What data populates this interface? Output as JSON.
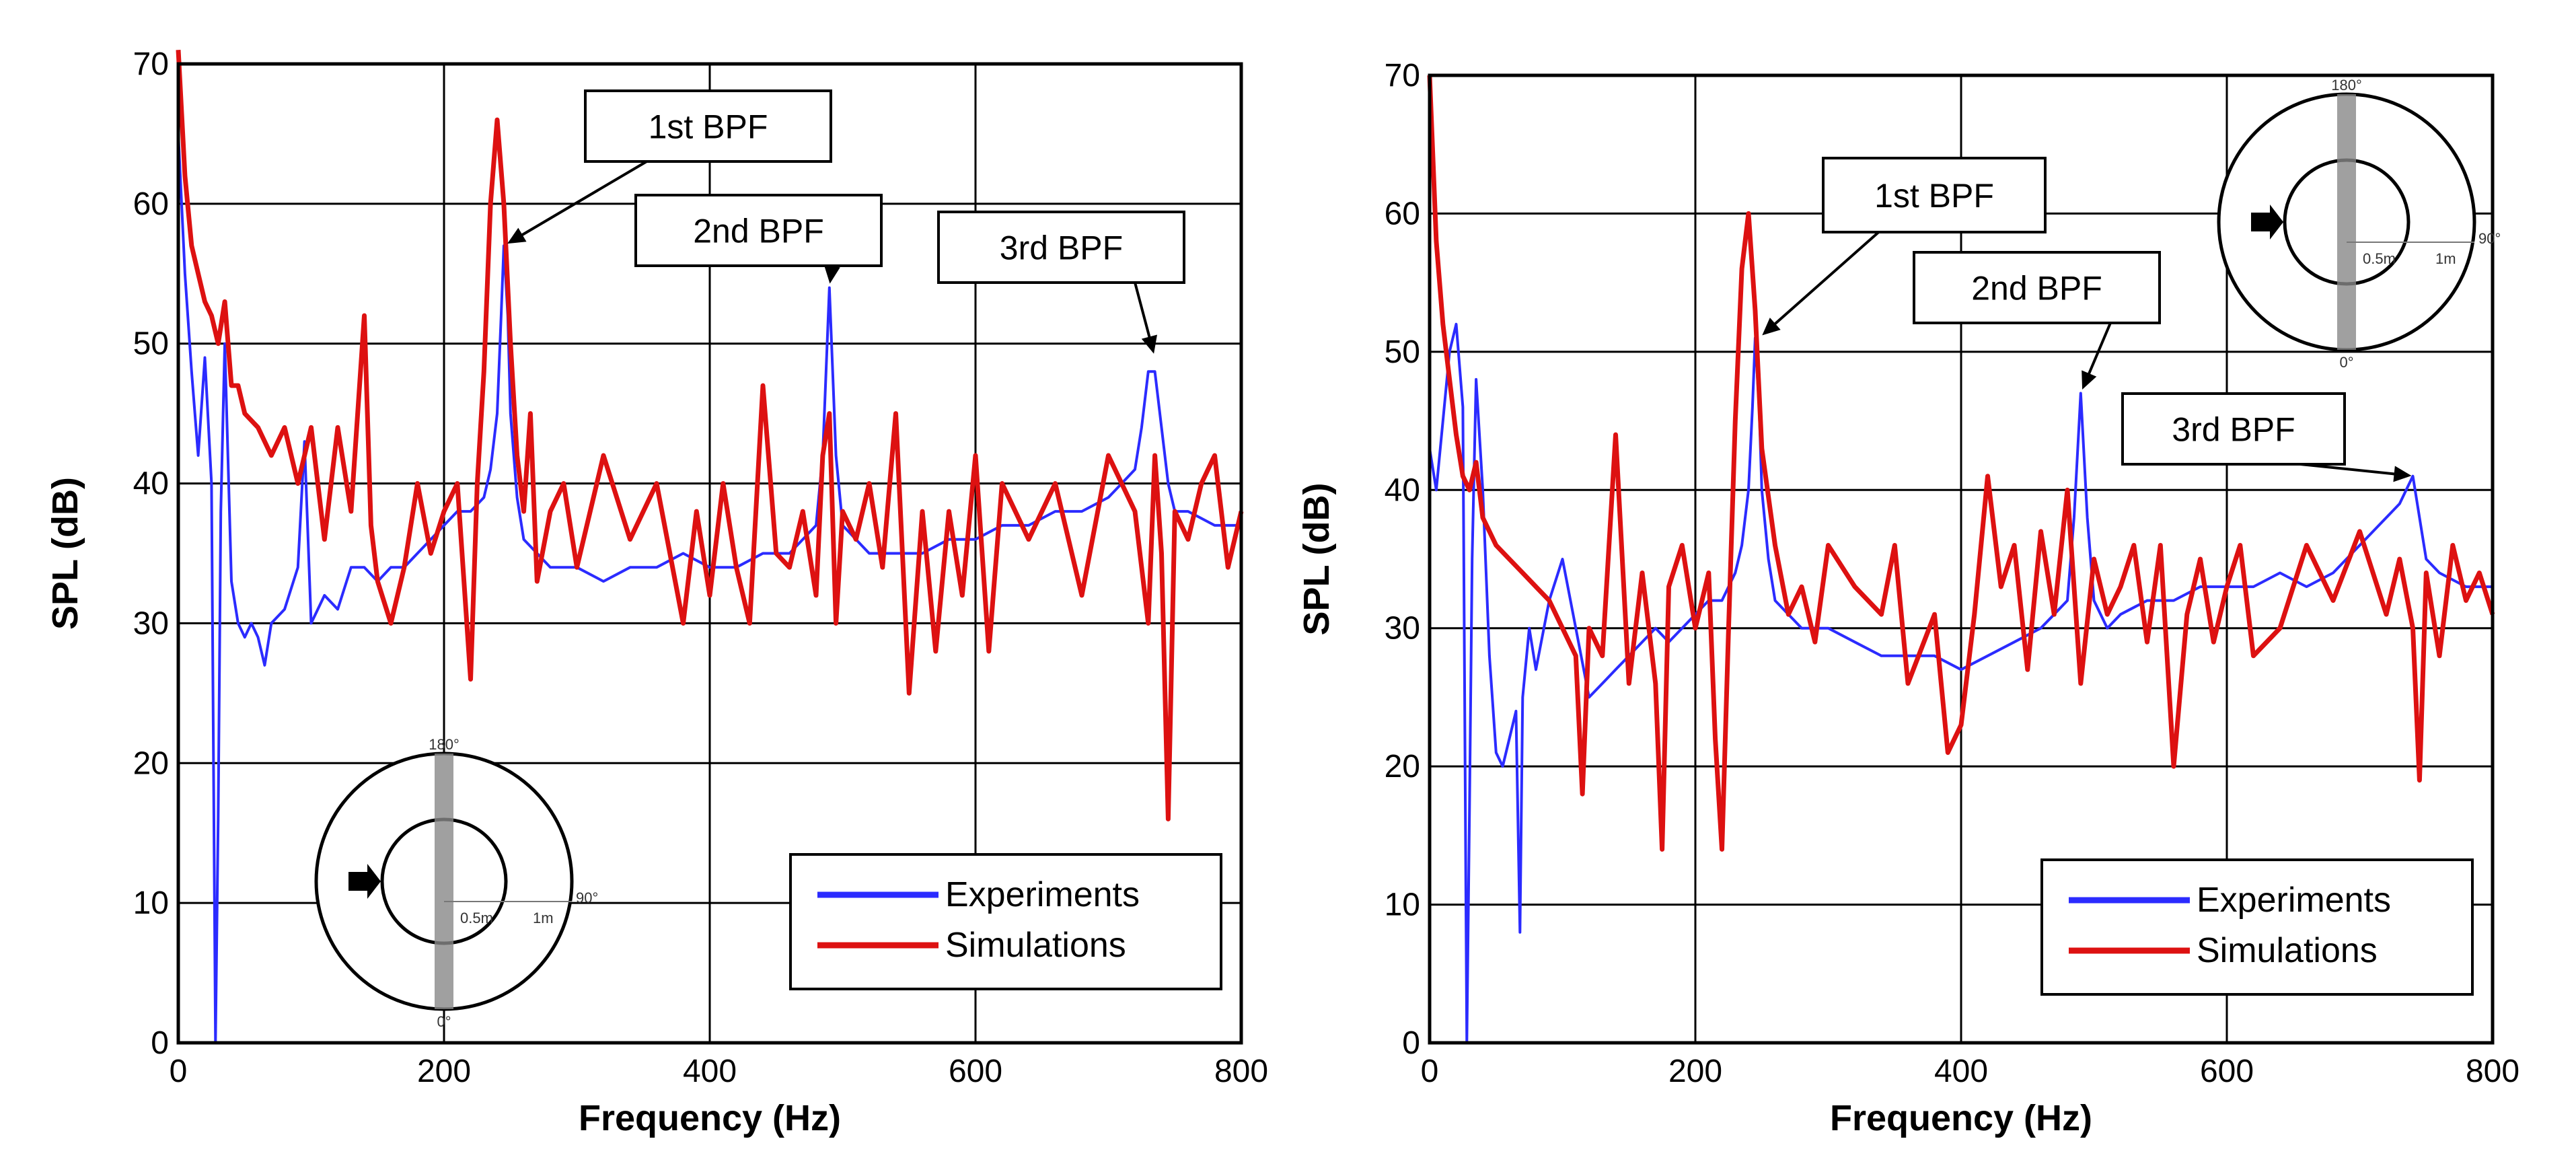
{
  "colors": {
    "experiments": "#2b2bff",
    "simulations": "#dd1111",
    "grid": "#000000"
  },
  "chart_data": [
    {
      "type": "line",
      "title": "",
      "xlabel": "Frequency (Hz)",
      "ylabel": "SPL (dB)",
      "xlim": [
        0,
        800
      ],
      "ylim": [
        0,
        70
      ],
      "xticks": [
        "0",
        "200",
        "400",
        "600",
        "800"
      ],
      "yticks": [
        "0",
        "10",
        "20",
        "30",
        "40",
        "50",
        "60",
        "70"
      ],
      "grid": true,
      "legend_position": "bottom-right",
      "annotations": [
        {
          "label": "1st BPF",
          "target": [
            245,
            57
          ]
        },
        {
          "label": "2nd BPF",
          "target": [
            490,
            54
          ]
        },
        {
          "label": "3rd BPF",
          "target": [
            735,
            49
          ]
        }
      ],
      "inset": {
        "labels": [
          "180°",
          "90°",
          "0°",
          "0.5m",
          "1m"
        ]
      },
      "series": [
        {
          "name": "Experiments",
          "color_key": "experiments",
          "x": [
            0,
            5,
            10,
            15,
            20,
            25,
            28,
            30,
            32,
            35,
            40,
            45,
            50,
            55,
            60,
            65,
            70,
            80,
            90,
            95,
            100,
            110,
            120,
            130,
            140,
            150,
            160,
            170,
            180,
            190,
            200,
            210,
            220,
            230,
            235,
            240,
            243,
            245,
            248,
            250,
            255,
            260,
            270,
            280,
            300,
            320,
            340,
            360,
            380,
            400,
            420,
            440,
            460,
            470,
            480,
            485,
            490,
            495,
            500,
            510,
            520,
            540,
            560,
            580,
            600,
            620,
            640,
            660,
            680,
            700,
            710,
            720,
            725,
            730,
            735,
            740,
            745,
            750,
            760,
            780,
            800
          ],
          "values": [
            65,
            55,
            48,
            42,
            49,
            40,
            0,
            16,
            38,
            50,
            33,
            30,
            29,
            30,
            29,
            27,
            30,
            31,
            34,
            43,
            30,
            32,
            31,
            34,
            34,
            33,
            34,
            34,
            35,
            36,
            37,
            38,
            38,
            39,
            41,
            45,
            52,
            57,
            52,
            45,
            39,
            36,
            35,
            34,
            34,
            33,
            34,
            34,
            35,
            34,
            34,
            35,
            35,
            36,
            37,
            42,
            54,
            42,
            37,
            36,
            35,
            35,
            35,
            36,
            36,
            37,
            37,
            38,
            38,
            39,
            40,
            41,
            44,
            48,
            48,
            44,
            40,
            38,
            38,
            37,
            37
          ]
        },
        {
          "name": "Simulations",
          "color_key": "simulations",
          "x": [
            0,
            5,
            10,
            15,
            20,
            25,
            30,
            35,
            40,
            45,
            50,
            60,
            70,
            80,
            90,
            100,
            110,
            120,
            130,
            140,
            145,
            150,
            160,
            170,
            180,
            190,
            200,
            210,
            220,
            225,
            230,
            235,
            240,
            245,
            250,
            255,
            260,
            265,
            270,
            280,
            290,
            300,
            320,
            340,
            360,
            380,
            390,
            400,
            410,
            420,
            430,
            440,
            450,
            460,
            470,
            480,
            485,
            490,
            495,
            500,
            510,
            520,
            530,
            540,
            550,
            560,
            570,
            580,
            590,
            600,
            610,
            620,
            640,
            660,
            680,
            700,
            720,
            730,
            735,
            740,
            745,
            750,
            760,
            770,
            780,
            790,
            800
          ],
          "values": [
            71,
            62,
            57,
            55,
            53,
            52,
            50,
            53,
            47,
            47,
            45,
            44,
            42,
            44,
            40,
            44,
            36,
            44,
            38,
            52,
            37,
            33,
            30,
            34,
            40,
            35,
            38,
            40,
            26,
            40,
            48,
            60,
            66,
            60,
            50,
            42,
            38,
            45,
            33,
            38,
            40,
            34,
            42,
            36,
            40,
            30,
            38,
            32,
            40,
            34,
            30,
            47,
            35,
            34,
            38,
            32,
            42,
            45,
            30,
            38,
            36,
            40,
            34,
            45,
            25,
            38,
            28,
            38,
            32,
            42,
            28,
            40,
            36,
            40,
            32,
            42,
            38,
            30,
            42,
            35,
            16,
            38,
            36,
            40,
            42,
            34,
            38
          ]
        }
      ]
    },
    {
      "type": "line",
      "title": "",
      "xlabel": "Frequency (Hz)",
      "ylabel": "SPL (dB)",
      "xlim": [
        0,
        800
      ],
      "ylim": [
        0,
        70
      ],
      "xticks": [
        "0",
        "200",
        "400",
        "600",
        "800"
      ],
      "yticks": [
        "0",
        "10",
        "20",
        "30",
        "40",
        "50",
        "60",
        "70"
      ],
      "grid": true,
      "legend_position": "bottom-right",
      "annotations": [
        {
          "label": "1st BPF",
          "target": [
            248,
            51
          ]
        },
        {
          "label": "2nd BPF",
          "target": [
            490,
            47
          ]
        },
        {
          "label": "3rd BPF",
          "target": [
            742,
            41
          ]
        }
      ],
      "inset": {
        "labels": [
          "180°",
          "90°",
          "0°",
          "0.5m",
          "1m"
        ]
      },
      "series": [
        {
          "name": "Experiments",
          "color_key": "experiments",
          "x": [
            0,
            5,
            10,
            15,
            20,
            25,
            28,
            30,
            32,
            35,
            40,
            45,
            50,
            55,
            60,
            65,
            68,
            70,
            75,
            80,
            90,
            100,
            110,
            120,
            130,
            140,
            150,
            160,
            170,
            180,
            190,
            200,
            210,
            220,
            230,
            235,
            240,
            243,
            245,
            248,
            250,
            255,
            260,
            270,
            280,
            300,
            320,
            340,
            360,
            380,
            400,
            420,
            440,
            460,
            470,
            480,
            485,
            490,
            495,
            500,
            510,
            520,
            540,
            560,
            580,
            600,
            620,
            640,
            660,
            680,
            700,
            710,
            720,
            730,
            735,
            740,
            745,
            750,
            760,
            780,
            800
          ],
          "values": [
            43,
            40,
            45,
            50,
            52,
            46,
            0,
            17,
            35,
            48,
            40,
            28,
            21,
            20,
            22,
            24,
            8,
            25,
            30,
            27,
            32,
            35,
            30,
            25,
            26,
            27,
            28,
            29,
            30,
            29,
            30,
            31,
            32,
            32,
            34,
            36,
            40,
            46,
            51,
            46,
            40,
            35,
            32,
            31,
            30,
            30,
            29,
            28,
            28,
            28,
            27,
            28,
            29,
            30,
            31,
            32,
            38,
            47,
            38,
            32,
            30,
            31,
            32,
            32,
            33,
            33,
            33,
            34,
            33,
            34,
            36,
            37,
            38,
            39,
            40,
            41,
            38,
            35,
            34,
            33,
            33
          ]
        },
        {
          "name": "Simulations",
          "color_key": "simulations",
          "x": [
            0,
            5,
            10,
            15,
            20,
            25,
            30,
            35,
            40,
            45,
            50,
            60,
            70,
            80,
            90,
            100,
            110,
            115,
            120,
            130,
            140,
            150,
            160,
            170,
            175,
            180,
            190,
            200,
            210,
            215,
            220,
            225,
            230,
            235,
            240,
            245,
            250,
            260,
            270,
            280,
            290,
            300,
            320,
            340,
            350,
            360,
            380,
            390,
            400,
            410,
            420,
            430,
            440,
            450,
            460,
            470,
            480,
            490,
            500,
            510,
            520,
            530,
            540,
            550,
            560,
            570,
            580,
            590,
            600,
            610,
            620,
            640,
            660,
            680,
            700,
            720,
            730,
            740,
            745,
            750,
            760,
            770,
            780,
            790,
            800
          ],
          "values": [
            70,
            58,
            52,
            48,
            44,
            41,
            40,
            42,
            38,
            37,
            36,
            35,
            34,
            33,
            32,
            30,
            28,
            18,
            30,
            28,
            44,
            26,
            34,
            26,
            14,
            33,
            36,
            30,
            34,
            22,
            14,
            30,
            45,
            56,
            60,
            53,
            43,
            36,
            31,
            33,
            29,
            36,
            33,
            31,
            36,
            26,
            31,
            21,
            23,
            31,
            41,
            33,
            36,
            27,
            37,
            31,
            40,
            26,
            35,
            31,
            33,
            36,
            29,
            36,
            20,
            31,
            35,
            29,
            33,
            36,
            28,
            30,
            36,
            32,
            37,
            31,
            35,
            30,
            19,
            34,
            28,
            36,
            32,
            34,
            31
          ]
        }
      ]
    }
  ]
}
